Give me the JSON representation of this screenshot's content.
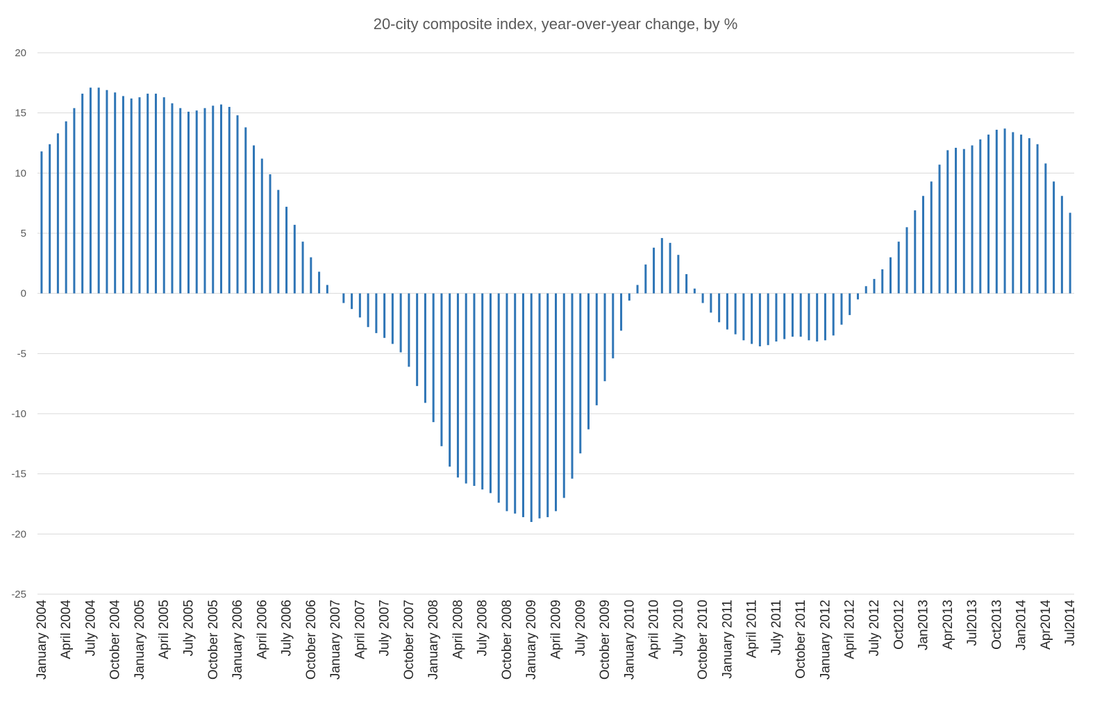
{
  "chart_data": {
    "type": "bar",
    "title": "20-city composite index, year-over-year change, by %",
    "xlabel": "",
    "ylabel": "",
    "ylim": [
      -25,
      20
    ],
    "yticks": [
      20,
      15,
      10,
      5,
      0,
      -5,
      -10,
      -15,
      -20,
      -25
    ],
    "grid": true,
    "legend": "none",
    "bar_color": "#2e75b6",
    "x_tick_labels": [
      "January 2004",
      "April 2004",
      "July 2004",
      "October 2004",
      "January 2005",
      "April 2005",
      "July 2005",
      "October 2005",
      "January 2006",
      "April 2006",
      "July 2006",
      "October 2006",
      "January 2007",
      "April 2007",
      "July 2007",
      "October 2007",
      "January 2008",
      "April 2008",
      "July 2008",
      "October 2008",
      "January 2009",
      "April 2009",
      "July 2009",
      "October 2009",
      "January 2010",
      "April 2010",
      "July 2010",
      "October 2010",
      "January 2011",
      "April 2011",
      "July 2011",
      "October 2011",
      "January 2012",
      "April 2012",
      "July 2012",
      "Oct2012",
      "Jan2013",
      "Apr2013",
      "Jul2013",
      "Oct2013",
      "Jan2014",
      "Apr2014",
      "Jul2014"
    ],
    "values": [
      11.8,
      12.4,
      13.3,
      14.3,
      15.4,
      16.6,
      17.1,
      17.1,
      16.9,
      16.7,
      16.4,
      16.2,
      16.3,
      16.6,
      16.6,
      16.3,
      15.8,
      15.4,
      15.1,
      15.2,
      15.4,
      15.6,
      15.7,
      15.5,
      14.8,
      13.8,
      12.3,
      11.2,
      9.9,
      8.6,
      7.2,
      5.7,
      4.3,
      3.0,
      1.8,
      0.7,
      0.0,
      -0.8,
      -1.3,
      -2.0,
      -2.8,
      -3.3,
      -3.7,
      -4.2,
      -4.9,
      -6.1,
      -7.7,
      -9.1,
      -10.7,
      -12.7,
      -14.4,
      -15.3,
      -15.8,
      -16.0,
      -16.3,
      -16.6,
      -17.4,
      -18.1,
      -18.3,
      -18.6,
      -19.0,
      -18.7,
      -18.6,
      -18.1,
      -17.0,
      -15.4,
      -13.3,
      -11.3,
      -9.3,
      -7.3,
      -5.4,
      -3.1,
      -0.6,
      0.7,
      2.4,
      3.8,
      4.6,
      4.2,
      3.2,
      1.6,
      0.4,
      -0.8,
      -1.6,
      -2.4,
      -3.0,
      -3.4,
      -3.9,
      -4.2,
      -4.4,
      -4.3,
      -4.0,
      -3.8,
      -3.6,
      -3.6,
      -3.9,
      -4.0,
      -3.9,
      -3.5,
      -2.6,
      -1.8,
      -0.5,
      0.6,
      1.2,
      2.0,
      3.0,
      4.3,
      5.5,
      6.9,
      8.1,
      9.3,
      10.7,
      11.9,
      12.1,
      12.0,
      12.3,
      12.8,
      13.2,
      13.6,
      13.7,
      13.4,
      13.2,
      12.9,
      12.4,
      10.8,
      9.3,
      8.1,
      6.7
    ]
  }
}
